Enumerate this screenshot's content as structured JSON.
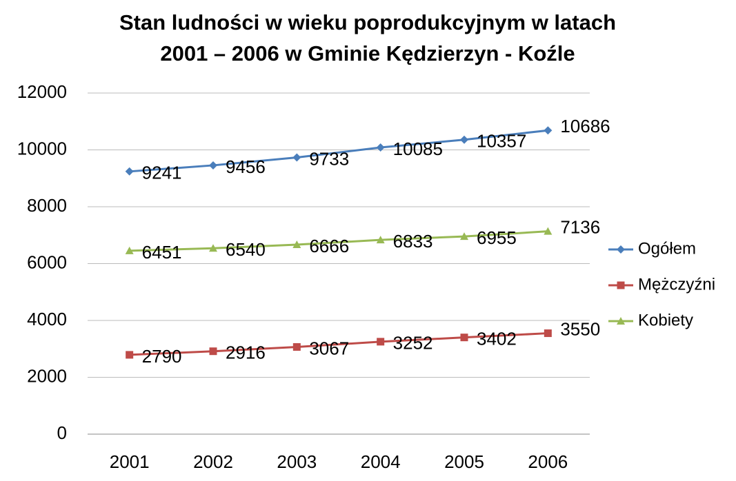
{
  "chart_data": {
    "type": "line",
    "title": [
      "Stan ludności w wieku poprodukcyjnym w latach",
      "2001 – 2006 w Gminie Kędzierzyn - Koźle"
    ],
    "categories": [
      "2001",
      "2002",
      "2003",
      "2004",
      "2005",
      "2006"
    ],
    "series": [
      {
        "name": "Ogółem",
        "color": "#4a7ebb",
        "marker": "diamond",
        "values": [
          9241,
          9456,
          9733,
          10085,
          10357,
          10686
        ]
      },
      {
        "name": "Mężczyźni",
        "color": "#be4b48",
        "marker": "square",
        "values": [
          2790,
          2916,
          3067,
          3252,
          3402,
          3550
        ]
      },
      {
        "name": "Kobiety",
        "color": "#98b954",
        "marker": "triangle",
        "values": [
          6451,
          6540,
          6666,
          6833,
          6955,
          7136
        ]
      }
    ],
    "ylim": [
      0,
      12000
    ],
    "yticks": [
      0,
      2000,
      4000,
      6000,
      8000,
      10000,
      12000
    ],
    "grid": true,
    "legend": "right"
  }
}
